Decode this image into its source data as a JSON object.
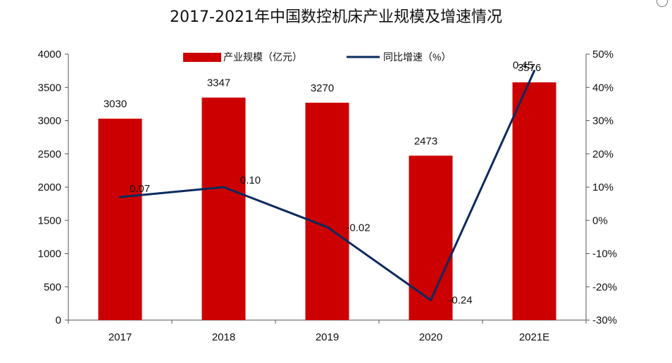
{
  "chart_data": {
    "type": "bar",
    "title": "2017-2021年中国数控机床产业规模及增速情况",
    "categories": [
      "2017",
      "2018",
      "2019",
      "2020",
      "2021E"
    ],
    "series": [
      {
        "name": "产业规模（亿元）",
        "type": "bar",
        "axis": "left",
        "values": [
          3030,
          3347,
          3270,
          2473,
          3576
        ],
        "labels": [
          "3030",
          "3347",
          "3270",
          "2473",
          "3576"
        ]
      },
      {
        "name": "同比增速（%）",
        "type": "line",
        "axis": "right",
        "values": [
          7,
          10,
          -2,
          -24,
          45
        ],
        "labels": [
          "0.07",
          "0.10",
          "-0.02",
          "-0.24",
          "0.45"
        ]
      }
    ],
    "y_left": {
      "ylim": [
        0,
        4000
      ],
      "ticks": [
        "0",
        "500",
        "1000",
        "1500",
        "2000",
        "2500",
        "3000",
        "3500",
        "4000"
      ]
    },
    "y_right": {
      "ylim": [
        -30,
        50
      ],
      "ticks": [
        "-30%",
        "-20%",
        "-10%",
        "0%",
        "10%",
        "20%",
        "30%",
        "40%",
        "50%"
      ]
    },
    "grid": false,
    "legend": "top-center",
    "colors": {
      "bar": "#cc0000",
      "line": "#0d2a5e",
      "axis": "#555555",
      "text": "#111111"
    }
  }
}
